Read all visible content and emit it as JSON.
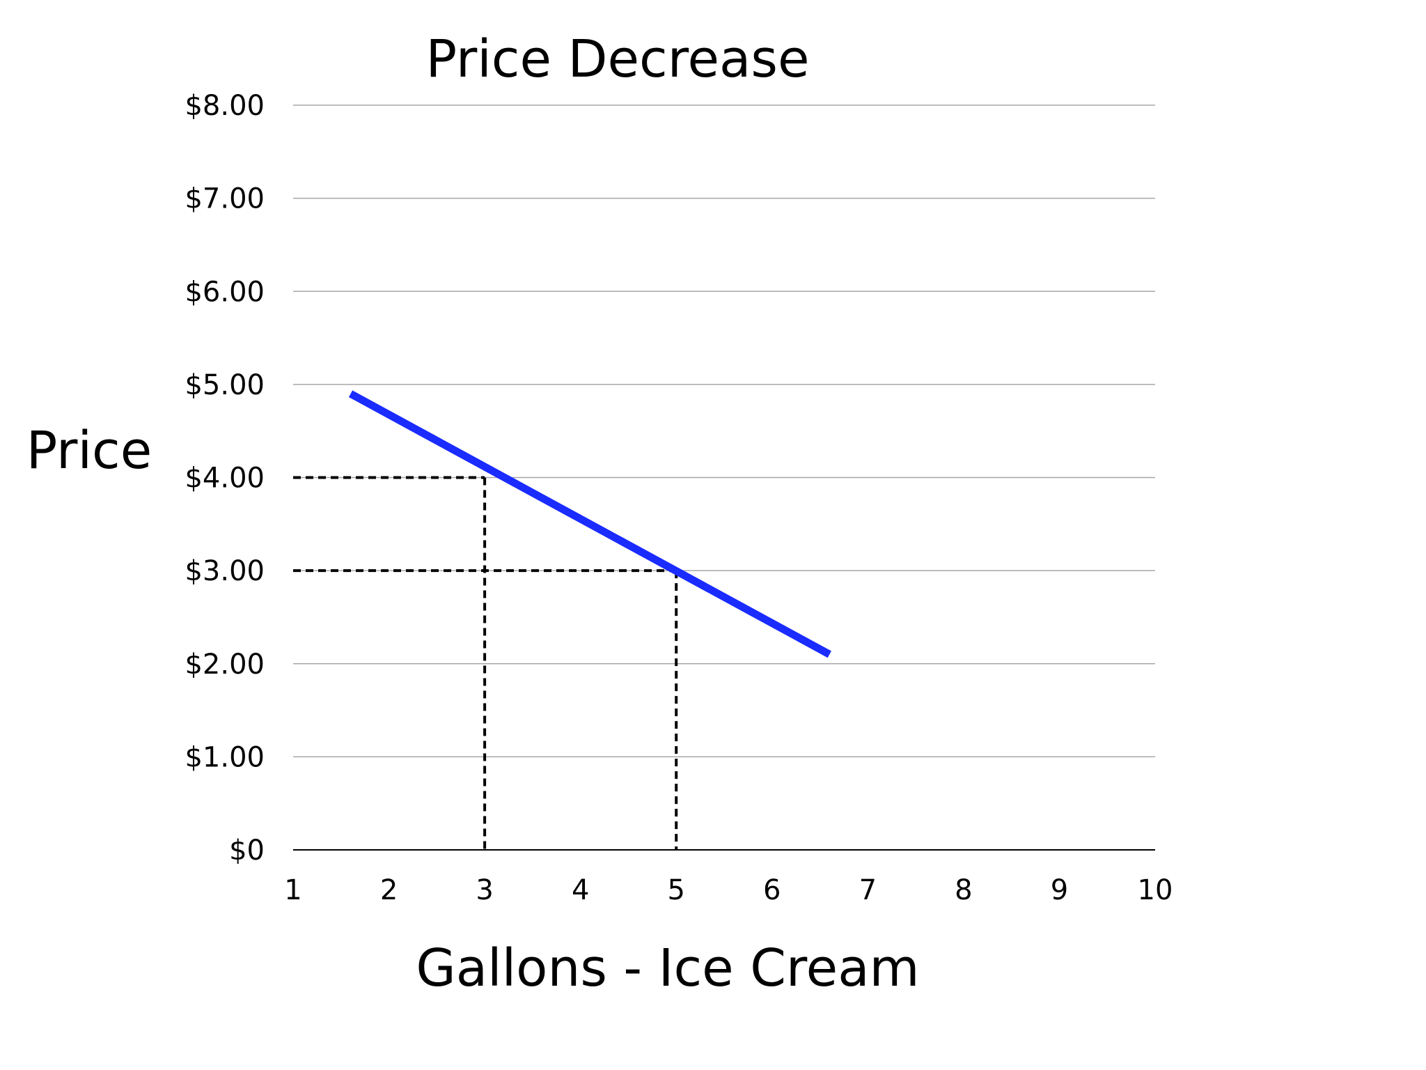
{
  "chart_data": {
    "type": "line",
    "title": "Price Decrease",
    "xlabel": "Gallons - Ice Cream",
    "ylabel": "Price",
    "x_ticks": [
      "1",
      "2",
      "3",
      "4",
      "5",
      "6",
      "7",
      "8",
      "9",
      "10"
    ],
    "y_ticks": [
      "$0",
      "$1.00",
      "$2.00",
      "$3.00",
      "$4.00",
      "$5.00",
      "$6.00",
      "$7.00",
      "$8.00"
    ],
    "xlim": [
      1,
      10
    ],
    "ylim": [
      0,
      8
    ],
    "grid": true,
    "series": [
      {
        "color": "#1a2cff",
        "points": [
          {
            "x": 1.6,
            "y": 4.9
          },
          {
            "x": 6.6,
            "y": 2.1
          }
        ]
      }
    ],
    "reference_points": [
      {
        "x": 3,
        "y": 4
      },
      {
        "x": 5,
        "y": 3
      }
    ],
    "colors": {
      "demand_line": "#1a2cff",
      "gridline": "#a6a6a6",
      "axis": "#000000",
      "reference_line": "#000000"
    }
  }
}
